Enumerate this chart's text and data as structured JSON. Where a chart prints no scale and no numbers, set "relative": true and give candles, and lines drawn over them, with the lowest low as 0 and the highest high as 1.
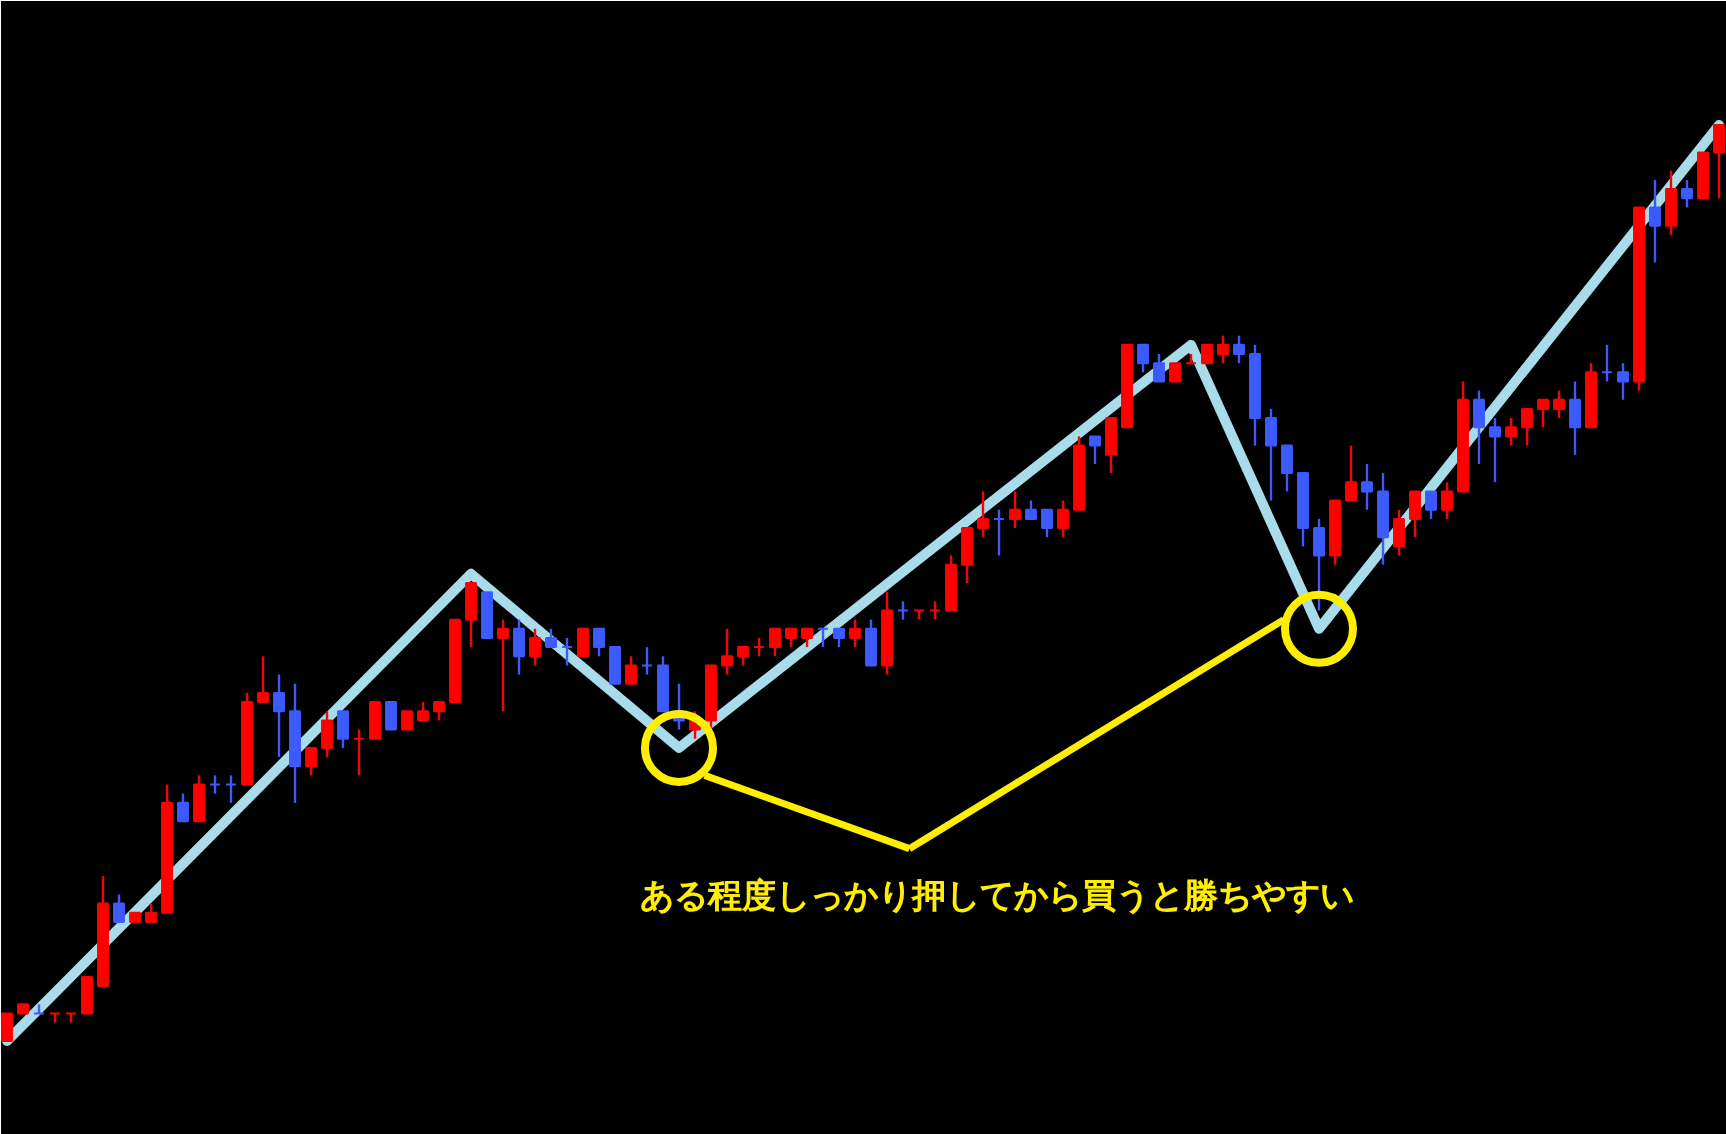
{
  "chart_data": {
    "type": "candlestick",
    "relative": true,
    "categories": [
      null,
      null,
      null,
      null,
      null,
      null,
      null,
      null,
      null,
      null,
      null,
      null,
      null,
      null,
      null,
      null,
      null,
      null,
      null,
      null,
      null,
      null,
      null,
      null,
      null,
      null,
      null,
      null,
      null,
      null,
      null,
      null,
      null,
      null,
      null,
      null,
      null,
      null,
      null,
      null,
      null,
      null,
      null,
      null,
      null,
      null,
      null,
      null,
      null,
      null,
      null,
      null,
      null,
      null,
      null,
      null,
      null,
      null,
      null,
      null,
      null,
      null,
      null,
      null,
      null,
      null,
      null,
      null,
      null,
      null,
      null,
      null,
      null,
      null,
      null,
      null,
      null,
      null,
      null,
      null,
      null,
      null,
      null,
      null,
      null,
      null,
      null,
      null,
      null,
      null,
      null,
      null,
      null,
      null,
      null,
      null,
      null,
      null,
      null,
      null,
      null,
      null,
      null,
      null,
      null,
      null,
      null,
      null
    ],
    "ohlc": [
      [
        0,
        0.03,
        0,
        0.03
      ],
      [
        0.03,
        0.04,
        0.03,
        0.04
      ],
      [
        0.03,
        0.04,
        0.03,
        0.03
      ],
      [
        0.03,
        0.03,
        0.02,
        0.03
      ],
      [
        0.03,
        0.03,
        0.02,
        0.03
      ],
      [
        0.03,
        0.07,
        0.03,
        0.07
      ],
      [
        0.06,
        0.18,
        0.06,
        0.15
      ],
      [
        0.15,
        0.16,
        0.13,
        0.13
      ],
      [
        0.13,
        0.14,
        0.13,
        0.14
      ],
      [
        0.13,
        0.15,
        0.13,
        0.14
      ],
      [
        0.14,
        0.28,
        0.14,
        0.26
      ],
      [
        0.26,
        0.27,
        0.24,
        0.24
      ],
      [
        0.24,
        0.29,
        0.24,
        0.28
      ],
      [
        0.28,
        0.29,
        0.27,
        0.28
      ],
      [
        0.28,
        0.29,
        0.26,
        0.28
      ],
      [
        0.28,
        0.38,
        0.28,
        0.37
      ],
      [
        0.37,
        0.42,
        0.37,
        0.38
      ],
      [
        0.38,
        0.4,
        0.31,
        0.36
      ],
      [
        0.36,
        0.39,
        0.26,
        0.3
      ],
      [
        0.3,
        0.32,
        0.29,
        0.32
      ],
      [
        0.32,
        0.36,
        0.31,
        0.35
      ],
      [
        0.36,
        0.36,
        0.32,
        0.33
      ],
      [
        0.33,
        0.34,
        0.29,
        0.33
      ],
      [
        0.33,
        0.37,
        0.33,
        0.37
      ],
      [
        0.37,
        0.37,
        0.34,
        0.34
      ],
      [
        0.34,
        0.36,
        0.34,
        0.36
      ],
      [
        0.35,
        0.37,
        0.35,
        0.36
      ],
      [
        0.36,
        0.37,
        0.35,
        0.37
      ],
      [
        0.37,
        0.46,
        0.37,
        0.46
      ],
      [
        0.46,
        0.5,
        0.43,
        0.5
      ],
      [
        0.49,
        0.49,
        0.44,
        0.44
      ],
      [
        0.44,
        0.46,
        0.36,
        0.45
      ],
      [
        0.45,
        0.46,
        0.4,
        0.42
      ],
      [
        0.42,
        0.45,
        0.41,
        0.44
      ],
      [
        0.44,
        0.45,
        0.43,
        0.43
      ],
      [
        0.43,
        0.44,
        0.41,
        0.43
      ],
      [
        0.42,
        0.45,
        0.42,
        0.45
      ],
      [
        0.45,
        0.45,
        0.42,
        0.43
      ],
      [
        0.43,
        0.43,
        0.39,
        0.39
      ],
      [
        0.39,
        0.42,
        0.39,
        0.41
      ],
      [
        0.41,
        0.43,
        0.4,
        0.41
      ],
      [
        0.41,
        0.42,
        0.36,
        0.36
      ],
      [
        0.36,
        0.39,
        0.34,
        0.35
      ],
      [
        0.34,
        0.36,
        0.33,
        0.35
      ],
      [
        0.35,
        0.41,
        0.34,
        0.41
      ],
      [
        0.41,
        0.45,
        0.4,
        0.42
      ],
      [
        0.42,
        0.43,
        0.41,
        0.43
      ],
      [
        0.43,
        0.44,
        0.42,
        0.43
      ],
      [
        0.43,
        0.45,
        0.42,
        0.45
      ],
      [
        0.44,
        0.45,
        0.43,
        0.45
      ],
      [
        0.44,
        0.45,
        0.43,
        0.45
      ],
      [
        0.45,
        0.45,
        0.43,
        0.45
      ],
      [
        0.45,
        0.45,
        0.43,
        0.44
      ],
      [
        0.44,
        0.46,
        0.43,
        0.45
      ],
      [
        0.45,
        0.46,
        0.41,
        0.41
      ],
      [
        0.41,
        0.49,
        0.4,
        0.47
      ],
      [
        0.47,
        0.48,
        0.46,
        0.47
      ],
      [
        0.47,
        0.47,
        0.46,
        0.47
      ],
      [
        0.47,
        0.48,
        0.46,
        0.47
      ],
      [
        0.47,
        0.53,
        0.47,
        0.52
      ],
      [
        0.52,
        0.56,
        0.5,
        0.56
      ],
      [
        0.56,
        0.6,
        0.55,
        0.57
      ],
      [
        0.57,
        0.58,
        0.53,
        0.57
      ],
      [
        0.57,
        0.6,
        0.56,
        0.58
      ],
      [
        0.58,
        0.59,
        0.57,
        0.57
      ],
      [
        0.58,
        0.58,
        0.55,
        0.56
      ],
      [
        0.56,
        0.59,
        0.55,
        0.58
      ],
      [
        0.58,
        0.66,
        0.58,
        0.65
      ],
      [
        0.66,
        0.66,
        0.63,
        0.65
      ],
      [
        0.64,
        0.68,
        0.62,
        0.68
      ],
      [
        0.67,
        0.76,
        0.67,
        0.76
      ],
      [
        0.76,
        0.76,
        0.73,
        0.74
      ],
      [
        0.74,
        0.75,
        0.72,
        0.72
      ],
      [
        0.72,
        0.74,
        0.72,
        0.74
      ],
      [
        0.74,
        0.75,
        0.74,
        0.74
      ],
      [
        0.74,
        0.76,
        0.74,
        0.76
      ],
      [
        0.75,
        0.77,
        0.74,
        0.76
      ],
      [
        0.76,
        0.77,
        0.74,
        0.75
      ],
      [
        0.75,
        0.76,
        0.65,
        0.68
      ],
      [
        0.68,
        0.69,
        0.59,
        0.65
      ],
      [
        0.65,
        0.65,
        0.6,
        0.62
      ],
      [
        0.62,
        0.62,
        0.54,
        0.56
      ],
      [
        0.56,
        0.57,
        0.47,
        0.53
      ],
      [
        0.53,
        0.59,
        0.52,
        0.59
      ],
      [
        0.59,
        0.65,
        0.59,
        0.61
      ],
      [
        0.61,
        0.63,
        0.58,
        0.6
      ],
      [
        0.6,
        0.62,
        0.52,
        0.55
      ],
      [
        0.54,
        0.58,
        0.53,
        0.57
      ],
      [
        0.57,
        0.6,
        0.55,
        0.6
      ],
      [
        0.6,
        0.6,
        0.57,
        0.58
      ],
      [
        0.58,
        0.61,
        0.57,
        0.6
      ],
      [
        0.6,
        0.72,
        0.6,
        0.7
      ],
      [
        0.7,
        0.71,
        0.63,
        0.67
      ],
      [
        0.67,
        0.68,
        0.61,
        0.66
      ],
      [
        0.66,
        0.68,
        0.65,
        0.67
      ],
      [
        0.67,
        0.69,
        0.65,
        0.69
      ],
      [
        0.69,
        0.7,
        0.67,
        0.7
      ],
      [
        0.69,
        0.71,
        0.68,
        0.7
      ],
      [
        0.7,
        0.72,
        0.64,
        0.67
      ],
      [
        0.67,
        0.74,
        0.67,
        0.73
      ],
      [
        0.73,
        0.76,
        0.72,
        0.73
      ],
      [
        0.73,
        0.74,
        0.7,
        0.72
      ],
      [
        0.72,
        0.91,
        0.71,
        0.91
      ],
      [
        0.91,
        0.94,
        0.85,
        0.89
      ],
      [
        0.89,
        0.95,
        0.88,
        0.93
      ],
      [
        0.93,
        0.94,
        0.91,
        0.92
      ],
      [
        0.92,
        0.97,
        0.92,
        0.97
      ],
      [
        0.97,
        1,
        0.92,
        1
      ]
    ],
    "colors": [
      "#ff0000",
      "#ff0000",
      "#3d5afe",
      "#ff0000",
      "#ff0000",
      "#ff0000",
      "#ff0000",
      "#3d5afe",
      "#ff0000",
      "#ff0000",
      "#ff0000",
      "#3d5afe",
      "#ff0000",
      "#3d5afe",
      "#3d5afe",
      "#ff0000",
      "#ff0000",
      "#3d5afe",
      "#3d5afe",
      "#ff0000",
      "#ff0000",
      "#3d5afe",
      "#ff0000",
      "#ff0000",
      "#3d5afe",
      "#ff0000",
      "#ff0000",
      "#ff0000",
      "#ff0000",
      "#ff0000",
      "#3d5afe",
      "#ff0000",
      "#3d5afe",
      "#ff0000",
      "#3d5afe",
      "#3d5afe",
      "#ff0000",
      "#3d5afe",
      "#3d5afe",
      "#ff0000",
      "#3d5afe",
      "#3d5afe",
      "#3d5afe",
      "#ff0000",
      "#ff0000",
      "#ff0000",
      "#ff0000",
      "#ff0000",
      "#ff0000",
      "#ff0000",
      "#ff0000",
      "#3d5afe",
      "#3d5afe",
      "#ff0000",
      "#3d5afe",
      "#ff0000",
      "#3d5afe",
      "#ff0000",
      "#ff0000",
      "#ff0000",
      "#ff0000",
      "#ff0000",
      "#3d5afe",
      "#ff0000",
      "#3d5afe",
      "#3d5afe",
      "#ff0000",
      "#ff0000",
      "#3d5afe",
      "#ff0000",
      "#ff0000",
      "#3d5afe",
      "#3d5afe",
      "#ff0000",
      "#ff0000",
      "#ff0000",
      "#ff0000",
      "#3d5afe",
      "#3d5afe",
      "#3d5afe",
      "#3d5afe",
      "#3d5afe",
      "#3d5afe",
      "#ff0000",
      "#ff0000",
      "#3d5afe",
      "#3d5afe",
      "#ff0000",
      "#ff0000",
      "#3d5afe",
      "#ff0000",
      "#ff0000",
      "#3d5afe",
      "#3d5afe",
      "#ff0000",
      "#ff0000",
      "#ff0000",
      "#ff0000",
      "#3d5afe",
      "#ff0000",
      "#3d5afe",
      "#3d5afe",
      "#ff0000",
      "#3d5afe",
      "#ff0000",
      "#3d5afe",
      "#ff0000",
      "#ff0000"
    ],
    "series": [
      {
        "type": "line",
        "color": "#a8dcea",
        "values": [
          0,
          null,
          null,
          null,
          null,
          null,
          null,
          null,
          null,
          null,
          null,
          null,
          null,
          null,
          null,
          null,
          null,
          null,
          null,
          null,
          null,
          null,
          null,
          null,
          null,
          null,
          null,
          null,
          null,
          0.51,
          null,
          null,
          null,
          null,
          null,
          null,
          null,
          null,
          null,
          null,
          null,
          null,
          0.32,
          null,
          null,
          null,
          null,
          null,
          null,
          null,
          null,
          null,
          null,
          null,
          null,
          null,
          null,
          null,
          null,
          null,
          null,
          null,
          null,
          null,
          null,
          null,
          null,
          null,
          null,
          null,
          null,
          null,
          null,
          null,
          0.76,
          null,
          null,
          null,
          null,
          null,
          null,
          null,
          0.45,
          null,
          null,
          null,
          null,
          null,
          null,
          null,
          null,
          null,
          null,
          null,
          null,
          null,
          null,
          null,
          null,
          null,
          null,
          null,
          null,
          null,
          null,
          null,
          null,
          1
        ]
      }
    ],
    "annotations": [
      "ある程度しっかり押してから買うと勝ちやすい"
    ]
  }
}
